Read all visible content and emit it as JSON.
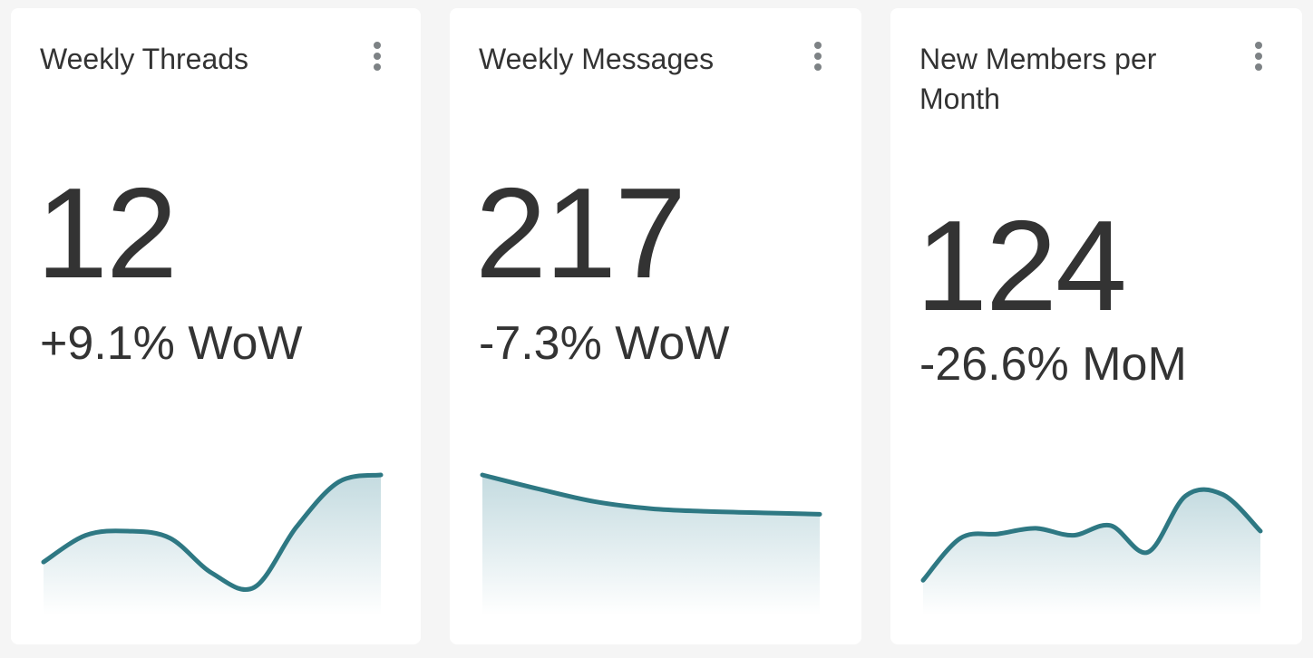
{
  "colors": {
    "line": "#2e7883",
    "fill_top": "#c4dbe0",
    "fill_bottom": "#ffffff"
  },
  "cards": [
    {
      "title": "Weekly Threads",
      "value": "12",
      "change": "+9.1% WoW",
      "menu_icon": "more-vertical-icon",
      "trend": [
        0.38,
        0.57,
        0.6,
        0.55,
        0.3,
        0.2,
        0.63,
        0.95,
        1.0
      ]
    },
    {
      "title": "Weekly Messages",
      "value": "217",
      "change": "-7.3% WoW",
      "menu_icon": "more-vertical-icon",
      "trend": [
        1.0,
        0.9,
        0.81,
        0.76,
        0.74,
        0.73,
        0.72
      ]
    },
    {
      "title": "New Members per Month",
      "value": "124",
      "change": "-26.6% MoM",
      "menu_icon": "more-vertical-icon",
      "trend": [
        0.25,
        0.55,
        0.58,
        0.62,
        0.57,
        0.64,
        0.45,
        0.85,
        0.86,
        0.6
      ]
    }
  ]
}
